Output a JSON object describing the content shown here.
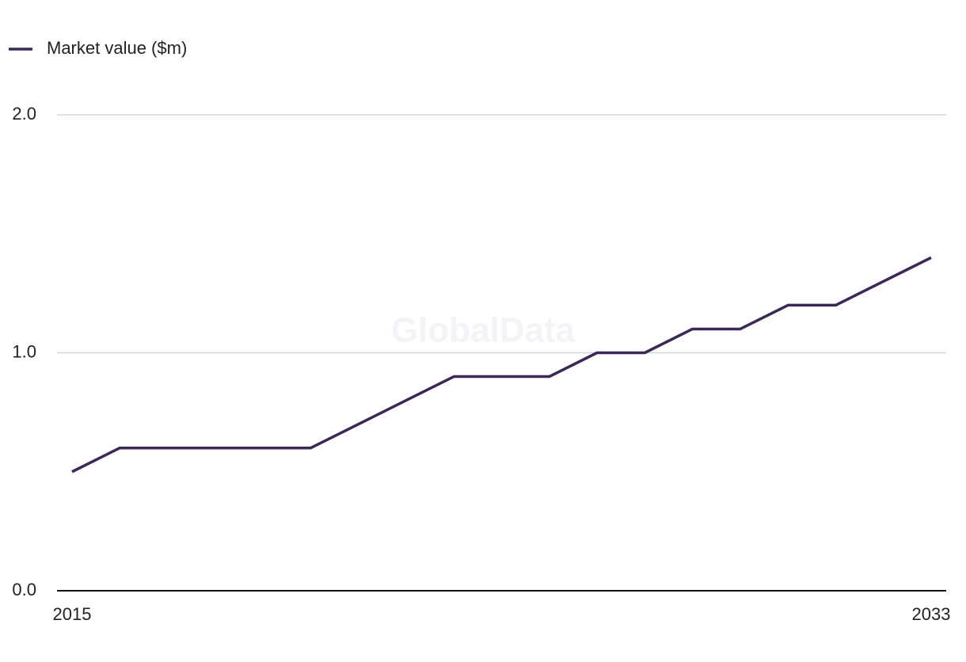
{
  "chart_data": {
    "type": "line",
    "watermark": "GlobalData",
    "x": [
      2015,
      2016,
      2017,
      2018,
      2019,
      2020,
      2021,
      2022,
      2023,
      2024,
      2025,
      2026,
      2027,
      2028,
      2029,
      2030,
      2031,
      2032,
      2033
    ],
    "series": [
      {
        "name": "Market value ($m)",
        "color": "#3b2856",
        "values": [
          0.5,
          0.6,
          0.6,
          0.6,
          0.6,
          0.6,
          0.7,
          0.8,
          0.9,
          0.9,
          0.9,
          1.0,
          1.0,
          1.1,
          1.1,
          1.2,
          1.2,
          1.3,
          1.4
        ]
      }
    ],
    "xlim": [
      2015,
      2033
    ],
    "xticks": [
      2015,
      2033
    ],
    "ylim": [
      0,
      2
    ],
    "yticks": [
      {
        "value": 0,
        "label": "0.0"
      },
      {
        "value": 1,
        "label": "1.0"
      },
      {
        "value": 2,
        "label": "2.0"
      }
    ],
    "grid": true,
    "legend": "top-left"
  }
}
